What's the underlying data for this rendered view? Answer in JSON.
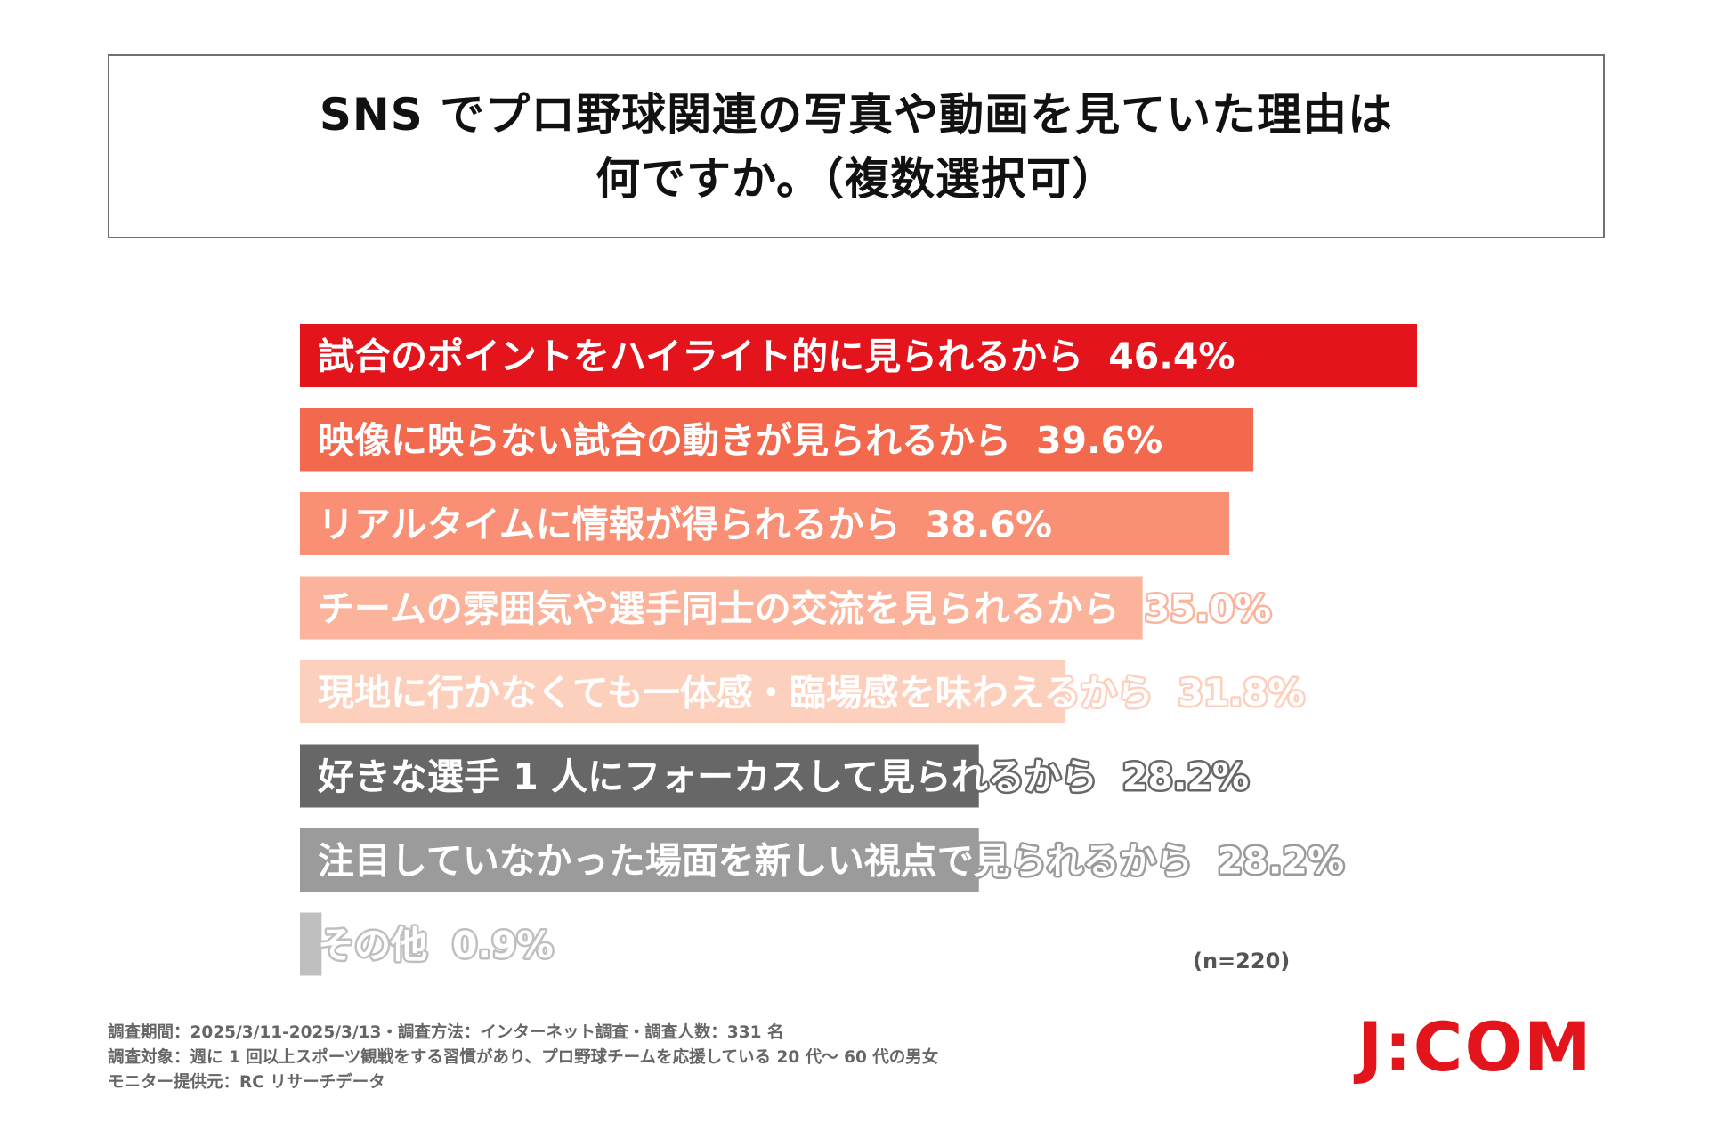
{
  "title": {
    "line1": "SNS でプロ野球関連の写真や動画を見ていた理由は",
    "line2": "何ですか。（複数選択可）"
  },
  "chart_data": {
    "type": "bar",
    "orientation": "horizontal",
    "categories": [
      "試合のポイントをハイライト的に見られるから",
      "映像に映らない試合の動きが見られるから",
      "リアルタイムに情報が得られるから",
      "チームの雰囲気や選手同士の交流を見られるから",
      "現地に行かなくても一体感・臨場感を味わえるから",
      "好きな選手 1 人にフォーカスして見られるから",
      "注目していなかった場面を新しい視点で見られるから",
      "その他"
    ],
    "values": [
      46.4,
      39.6,
      38.6,
      35.0,
      31.8,
      28.2,
      28.2,
      0.9
    ],
    "value_labels": [
      "46.4%",
      "39.6%",
      "38.6%",
      "35.0%",
      "31.8%",
      "28.2%",
      "28.2%",
      "0.9%"
    ],
    "colors": [
      "#e3141b",
      "#f3694e",
      "#f98f75",
      "#fcb39b",
      "#fdd0bd",
      "#676767",
      "#9b9b9b",
      "#bfbfbf"
    ],
    "outline_colors": [
      "#e3141b",
      "#f3694e",
      "#f98f75",
      "#fcb39b",
      "#fdd0bd",
      "#676767",
      "#9b9b9b",
      "#bfbfbf"
    ],
    "xlim": [
      0,
      46.4
    ],
    "grid": false,
    "legend": "none",
    "xlabel": "",
    "ylabel": ""
  },
  "sample_note": "(n=220)",
  "footer": {
    "line1": "調査期間：2025/3/11-2025/3/13・調査方法：インターネット調査・調査人数：331 名",
    "line2": "調査対象：週に 1 回以上スポーツ観戦をする習慣があり、プロ野球チームを応援している 20 代～ 60 代の男女",
    "line3": "モニター提供元：RC リサーチデータ"
  },
  "logo": {
    "text": "J:COM",
    "color": "#e3141b"
  }
}
